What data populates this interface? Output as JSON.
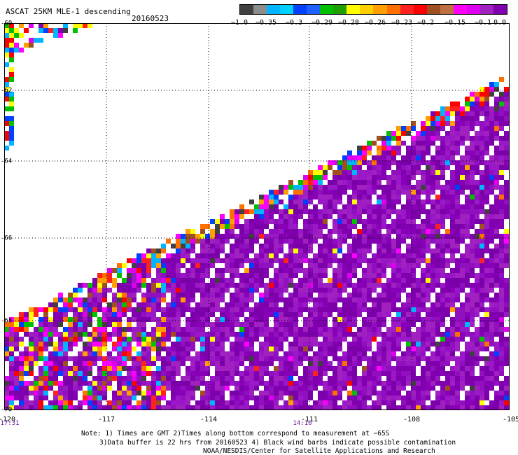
{
  "header": {
    "title": "ASCAT 25KM MLE-1 descending",
    "date": "20160523"
  },
  "colorbar": {
    "colors": [
      "#404040",
      "#8c8c8c",
      "#00b4ff",
      "#00d0ff",
      "#0040ff",
      "#2060ff",
      "#00c000",
      "#20a000",
      "#ffff00",
      "#ffd000",
      "#ffa000",
      "#ff7000",
      "#ff2020",
      "#ff0000",
      "#a05020",
      "#c07040",
      "#ff00ff",
      "#e000f0",
      "#a020c0",
      "#8000b0"
    ],
    "ticks": [
      "−1.0",
      "−0.35",
      "−0.3",
      "−0.29",
      "−0.28",
      "−0.26",
      "−0.23",
      "−0.2",
      "−0.15",
      "−0.1",
      "0.0"
    ]
  },
  "axes": {
    "lat_ticks": [
      "-60",
      "-62",
      "-64",
      "-66",
      "-68",
      "-70"
    ],
    "lon_ticks": [
      "-120",
      "-117",
      "-114",
      "-111",
      "-108",
      "-105"
    ],
    "time_labels": [
      "17:31",
      "14:10"
    ]
  },
  "notes": {
    "line1": "Note: 1) Times are GMT 2)Times along bottom correspond to measurement at −65S",
    "line2": "3)Data buffer is 22 hrs from 20160523 4) Black wind barbs indicate possible contamination",
    "line3": "NOAA/NESDIS/Center for Satellite Applications and Research"
  }
}
